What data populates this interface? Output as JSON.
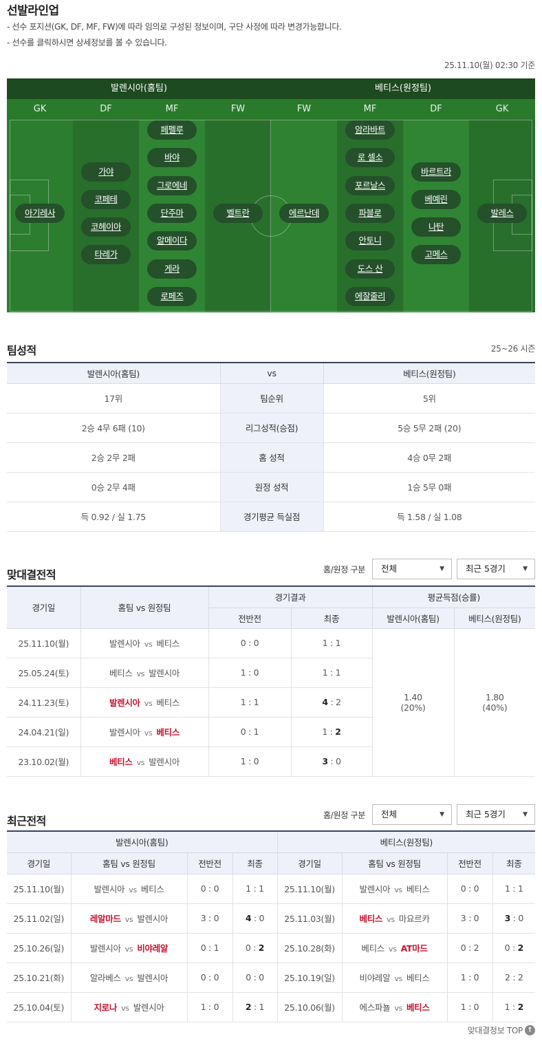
{
  "lineup": {
    "title": "선발라인업",
    "notes": [
      "- 선수 포지션(GK, DF, MF, FW)에 따라 임의로 구성된 정보이며, 구단 사정에 따라 변경가능합니다.",
      "- 선수를 클릭하시면 상세정보를 볼 수 있습니다."
    ],
    "timestamp": "25.11.10(월) 02:30 기준",
    "home_team": "발렌시아(홈팀)",
    "away_team": "베티스(원정팀)",
    "columns": [
      {
        "pos": "GK",
        "players": [
          "아기레사"
        ]
      },
      {
        "pos": "DF",
        "players": [
          "가야",
          "코페테",
          "코헤이아",
          "타레가"
        ]
      },
      {
        "pos": "MF",
        "players": [
          "페펠루",
          "바야",
          "그로에네",
          "단주마",
          "알메이다",
          "게라",
          "로페즈"
        ]
      },
      {
        "pos": "FW",
        "players": [
          "벨트란"
        ]
      },
      {
        "pos": "FW",
        "players": [
          "에르난데"
        ]
      },
      {
        "pos": "MF",
        "players": [
          "암라바트",
          "로 셀소",
          "포르날스",
          "파블로",
          "안토니",
          "도스 산",
          "에잘줄리"
        ]
      },
      {
        "pos": "DF",
        "players": [
          "바르트라",
          "베예린",
          "나탄",
          "고메스"
        ]
      },
      {
        "pos": "GK",
        "players": [
          "발레스"
        ]
      }
    ]
  },
  "team_stats": {
    "title": "팀성적",
    "season": "25~26 시즌",
    "header": [
      "발렌시아(홈팀)",
      "vs",
      "베티스(원정팀)"
    ],
    "rows": [
      [
        "17위",
        "팀순위",
        "5위"
      ],
      [
        "2승 4무 6패 (10)",
        "리그성적(승점)",
        "5승 5무 2패 (20)"
      ],
      [
        "2승 2무 2패",
        "홈 성적",
        "4승 0무 2패"
      ],
      [
        "0승 2무 4패",
        "원정 성적",
        "1승 5무 0패"
      ],
      [
        "득 0.92 / 실 1.75",
        "경기평균 득실점",
        "득 1.58 / 실 1.08"
      ]
    ]
  },
  "filters": {
    "label": "홈/원정 구분",
    "venue": "전체",
    "range": "최근 5경기"
  },
  "h2h": {
    "title": "맞대결전적",
    "headers": {
      "date": "경기일",
      "teams": "홈팀 vs 원정팀",
      "result": "경기결과",
      "half": "전반전",
      "final": "최종",
      "avg": "평균득점(승률)",
      "home": "발렌시아(홈팀)",
      "away": "베티스(원정팀)"
    },
    "rows": [
      {
        "date": "25.11.10(월)",
        "home": "발렌시아",
        "away": "베티스",
        "winner": "",
        "half": "0 : 0",
        "fh": "1",
        "fa": "1"
      },
      {
        "date": "25.05.24(토)",
        "home": "베티스",
        "away": "발렌시아",
        "winner": "",
        "half": "1 : 0",
        "fh": "1",
        "fa": "1"
      },
      {
        "date": "24.11.23(토)",
        "home": "발렌시아",
        "away": "베티스",
        "winner": "home",
        "half": "1 : 1",
        "fh": "4",
        "fa": "2"
      },
      {
        "date": "24.04.21(일)",
        "home": "발렌시아",
        "away": "베티스",
        "winner": "away",
        "half": "0 : 1",
        "fh": "1",
        "fa": "2"
      },
      {
        "date": "23.10.02(월)",
        "home": "베티스",
        "away": "발렌시아",
        "winner": "home",
        "half": "1 : 0",
        "fh": "3",
        "fa": "0"
      }
    ],
    "avg_home": "1.40",
    "avg_home_rate": "(20%)",
    "avg_away": "1.80",
    "avg_away_rate": "(40%)"
  },
  "recent": {
    "title": "최근전적",
    "home_team": "발렌시아(홈팀)",
    "away_team": "베티스(원정팀)",
    "headers": [
      "경기일",
      "홈팀 vs 원정팀",
      "전반전",
      "최종"
    ],
    "home_rows": [
      {
        "date": "25.11.10(월)",
        "home": "발렌시아",
        "away": "베티스",
        "winner": "",
        "half": "0 : 0",
        "fh": "1",
        "fa": "1"
      },
      {
        "date": "25.11.02(일)",
        "home": "레알마드",
        "away": "발렌시아",
        "winner": "home",
        "half": "3 : 0",
        "fh": "4",
        "fa": "0"
      },
      {
        "date": "25.10.26(일)",
        "home": "발렌시아",
        "away": "비야레알",
        "winner": "away",
        "half": "0 : 1",
        "fh": "0",
        "fa": "2"
      },
      {
        "date": "25.10.21(화)",
        "home": "알라베스",
        "away": "발렌시아",
        "winner": "",
        "half": "0 : 0",
        "fh": "0",
        "fa": "0"
      },
      {
        "date": "25.10.04(토)",
        "home": "지로나",
        "away": "발렌시아",
        "winner": "home",
        "half": "1 : 0",
        "fh": "2",
        "fa": "1"
      }
    ],
    "away_rows": [
      {
        "date": "25.11.10(월)",
        "home": "발렌시아",
        "away": "베티스",
        "winner": "",
        "half": "0 : 0",
        "fh": "1",
        "fa": "1"
      },
      {
        "date": "25.11.03(월)",
        "home": "베티스",
        "away": "마요르카",
        "winner": "home",
        "half": "3 : 0",
        "fh": "3",
        "fa": "0"
      },
      {
        "date": "25.10.28(화)",
        "home": "베티스",
        "away": "AT마드",
        "winner": "away",
        "half": "0 : 2",
        "fh": "0",
        "fa": "2"
      },
      {
        "date": "25.10.19(일)",
        "home": "비야레알",
        "away": "베티스",
        "winner": "",
        "half": "1 : 0",
        "fh": "2",
        "fa": "2"
      },
      {
        "date": "25.10.06(월)",
        "home": "에스파뇰",
        "away": "베티스",
        "winner": "away",
        "half": "1 : 0",
        "fh": "1",
        "fa": "2"
      }
    ]
  },
  "footer": {
    "top_label": "맞대결정보 TOP"
  },
  "colors": {
    "accent_win": "#c8102e",
    "pitch_dark": "#1d4a1f",
    "pitch": "#2f8a33",
    "header_bg": "#eef1fa"
  }
}
